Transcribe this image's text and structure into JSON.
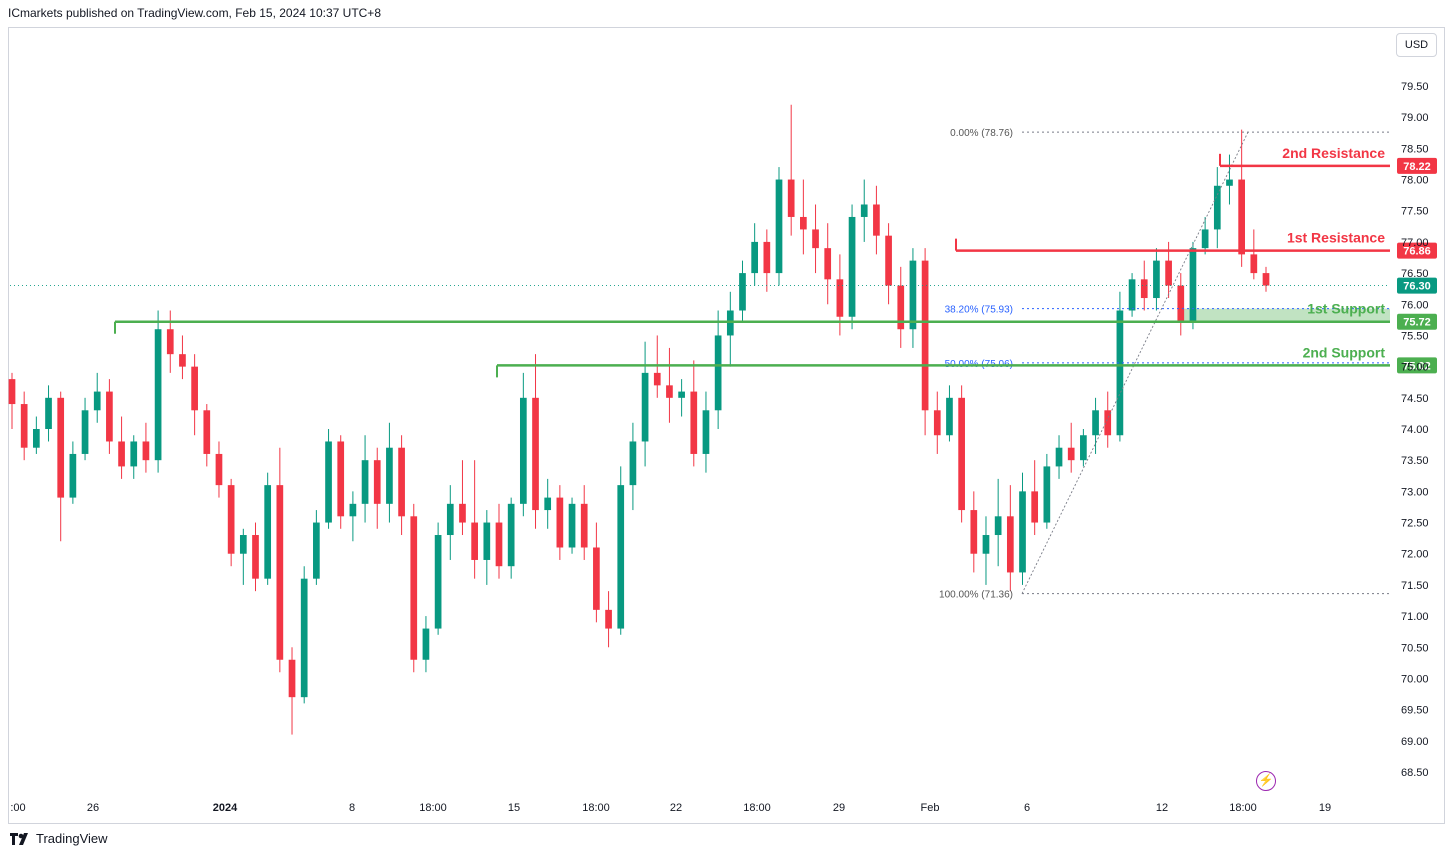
{
  "header": {
    "text": "ICmarkets published on TradingView.com, Feb 15, 2024 10:37 UTC+8"
  },
  "toolbar": {
    "currency": "USD"
  },
  "footer": {
    "brand": "TradingView"
  },
  "colors": {
    "up": "#089981",
    "down": "#f23645",
    "resistance": "#f23645",
    "support": "#4caf50",
    "fib_blue": "#2962ff",
    "grid_text": "#131722",
    "dotted": "#787b86"
  },
  "chart_data": {
    "type": "candlestick",
    "title": "",
    "ylabel": "",
    "ylim": [
      68.2,
      80.2
    ],
    "y_ticks": [
      "68.50",
      "69.00",
      "69.50",
      "70.00",
      "70.50",
      "71.00",
      "71.50",
      "72.00",
      "72.50",
      "73.00",
      "73.50",
      "74.00",
      "74.50",
      "75.00",
      "75.50",
      "76.00",
      "76.50",
      "77.00",
      "77.50",
      "78.00",
      "78.50",
      "79.00",
      "79.50"
    ],
    "x_ticks": [
      ":00",
      "26",
      "2024",
      "8",
      "18:00",
      "15",
      "18:00",
      "22",
      "18:00",
      "29",
      "Feb",
      "6",
      "12",
      "18:00",
      "19"
    ],
    "last_price": "76.30",
    "levels": [
      {
        "label": "2nd Resistance",
        "price": 78.22,
        "value_text": "78.22",
        "kind": "resistance"
      },
      {
        "label": "1st Resistance",
        "price": 76.86,
        "value_text": "76.86",
        "kind": "resistance"
      },
      {
        "label": "1st Support",
        "price": 75.72,
        "value_text": "75.72",
        "kind": "support"
      },
      {
        "label": "2nd Support",
        "price": 75.02,
        "value_text": "75.02",
        "kind": "support"
      }
    ],
    "fib_levels": [
      {
        "label": "0.00% (78.76)",
        "price": 78.76
      },
      {
        "label": "38.20% (75.93)",
        "price": 75.93
      },
      {
        "label": "50.00% (75.06)",
        "price": 75.06
      },
      {
        "label": "100.00% (71.36)",
        "price": 71.36
      }
    ],
    "candles": [
      [
        74.8,
        74.9,
        74.0,
        74.4
      ],
      [
        74.4,
        74.6,
        73.5,
        73.7
      ],
      [
        73.7,
        74.2,
        73.6,
        74.0
      ],
      [
        74.0,
        74.7,
        73.8,
        74.5
      ],
      [
        74.5,
        74.6,
        72.2,
        72.9
      ],
      [
        72.9,
        73.8,
        72.8,
        73.6
      ],
      [
        73.6,
        74.5,
        73.5,
        74.3
      ],
      [
        74.3,
        74.9,
        74.1,
        74.6
      ],
      [
        74.6,
        74.8,
        73.6,
        73.8
      ],
      [
        73.8,
        74.2,
        73.2,
        73.4
      ],
      [
        73.4,
        73.9,
        73.2,
        73.8
      ],
      [
        73.8,
        74.1,
        73.3,
        73.5
      ],
      [
        73.5,
        75.9,
        73.3,
        75.6
      ],
      [
        75.6,
        75.9,
        74.9,
        75.2
      ],
      [
        75.2,
        75.5,
        74.8,
        75.0
      ],
      [
        75.0,
        75.2,
        73.9,
        74.3
      ],
      [
        74.3,
        74.4,
        73.4,
        73.6
      ],
      [
        73.6,
        73.8,
        72.9,
        73.1
      ],
      [
        73.1,
        73.2,
        71.8,
        72.0
      ],
      [
        72.0,
        72.4,
        71.5,
        72.3
      ],
      [
        72.3,
        72.5,
        71.4,
        71.6
      ],
      [
        71.6,
        73.3,
        71.5,
        73.1
      ],
      [
        73.1,
        73.7,
        70.1,
        70.3
      ],
      [
        70.3,
        70.5,
        69.1,
        69.7
      ],
      [
        69.7,
        71.8,
        69.6,
        71.6
      ],
      [
        71.6,
        72.7,
        71.5,
        72.5
      ],
      [
        72.5,
        74.0,
        72.4,
        73.8
      ],
      [
        73.8,
        73.9,
        72.4,
        72.6
      ],
      [
        72.6,
        73.0,
        72.2,
        72.8
      ],
      [
        72.8,
        73.9,
        72.5,
        73.5
      ],
      [
        73.5,
        73.7,
        72.4,
        72.8
      ],
      [
        72.8,
        74.1,
        72.5,
        73.7
      ],
      [
        73.7,
        73.9,
        72.3,
        72.6
      ],
      [
        72.6,
        72.8,
        70.1,
        70.3
      ],
      [
        70.3,
        71.0,
        70.1,
        70.8
      ],
      [
        70.8,
        72.5,
        70.7,
        72.3
      ],
      [
        72.3,
        73.1,
        71.9,
        72.8
      ],
      [
        72.8,
        73.5,
        72.3,
        72.5
      ],
      [
        72.5,
        73.5,
        71.6,
        71.9
      ],
      [
        71.9,
        72.7,
        71.5,
        72.5
      ],
      [
        72.5,
        72.8,
        71.6,
        71.8
      ],
      [
        71.8,
        72.9,
        71.6,
        72.8
      ],
      [
        72.8,
        74.9,
        72.6,
        74.5
      ],
      [
        74.5,
        75.2,
        72.4,
        72.7
      ],
      [
        72.7,
        73.2,
        72.4,
        72.9
      ],
      [
        72.9,
        73.1,
        71.9,
        72.1
      ],
      [
        72.1,
        72.9,
        72.0,
        72.8
      ],
      [
        72.8,
        73.1,
        71.9,
        72.1
      ],
      [
        72.1,
        72.5,
        70.9,
        71.1
      ],
      [
        71.1,
        71.4,
        70.5,
        70.8
      ],
      [
        70.8,
        73.4,
        70.7,
        73.1
      ],
      [
        73.1,
        74.1,
        72.7,
        73.8
      ],
      [
        73.8,
        75.4,
        73.4,
        74.9
      ],
      [
        74.9,
        75.5,
        74.5,
        74.7
      ],
      [
        74.7,
        75.3,
        74.1,
        74.5
      ],
      [
        74.5,
        74.8,
        74.2,
        74.6
      ],
      [
        74.6,
        75.1,
        73.4,
        73.6
      ],
      [
        73.6,
        74.6,
        73.3,
        74.3
      ],
      [
        74.3,
        75.9,
        74.0,
        75.5
      ],
      [
        75.5,
        76.2,
        75.0,
        75.9
      ],
      [
        75.9,
        76.7,
        75.7,
        76.5
      ],
      [
        76.5,
        77.3,
        76.3,
        77.0
      ],
      [
        77.0,
        77.2,
        76.2,
        76.5
      ],
      [
        76.5,
        78.2,
        76.3,
        78.0
      ],
      [
        78.0,
        79.2,
        77.1,
        77.4
      ],
      [
        77.4,
        78.0,
        76.8,
        77.2
      ],
      [
        77.2,
        77.6,
        76.5,
        76.9
      ],
      [
        76.9,
        77.3,
        76.0,
        76.4
      ],
      [
        76.4,
        76.8,
        75.5,
        75.8
      ],
      [
        75.8,
        77.6,
        75.6,
        77.4
      ],
      [
        77.4,
        78.0,
        77.0,
        77.6
      ],
      [
        77.6,
        77.9,
        76.8,
        77.1
      ],
      [
        77.1,
        77.3,
        76.0,
        76.3
      ],
      [
        76.3,
        76.6,
        75.3,
        75.6
      ],
      [
        75.6,
        76.9,
        75.3,
        76.7
      ],
      [
        76.7,
        76.9,
        73.9,
        74.3
      ],
      [
        74.3,
        74.6,
        73.6,
        73.9
      ],
      [
        73.9,
        74.7,
        73.8,
        74.5
      ],
      [
        74.5,
        74.7,
        72.5,
        72.7
      ],
      [
        72.7,
        73.0,
        71.7,
        72.0
      ],
      [
        72.0,
        72.6,
        71.5,
        72.3
      ],
      [
        72.3,
        73.2,
        71.8,
        72.6
      ],
      [
        72.6,
        73.1,
        71.4,
        71.7
      ],
      [
        71.7,
        73.3,
        71.5,
        73.0
      ],
      [
        73.0,
        73.5,
        72.3,
        72.5
      ],
      [
        72.5,
        73.6,
        72.4,
        73.4
      ],
      [
        73.4,
        73.9,
        73.2,
        73.7
      ],
      [
        73.7,
        74.1,
        73.3,
        73.5
      ],
      [
        73.5,
        74.0,
        73.4,
        73.9
      ],
      [
        73.9,
        74.5,
        73.6,
        74.3
      ],
      [
        74.3,
        74.6,
        73.7,
        73.9
      ],
      [
        73.9,
        76.2,
        73.8,
        75.9
      ],
      [
        75.9,
        76.5,
        75.8,
        76.4
      ],
      [
        76.4,
        76.7,
        75.9,
        76.1
      ],
      [
        76.1,
        76.9,
        75.9,
        76.7
      ],
      [
        76.7,
        77.0,
        76.1,
        76.3
      ],
      [
        76.3,
        76.5,
        75.5,
        75.7
      ],
      [
        75.7,
        77.0,
        75.6,
        76.9
      ],
      [
        76.9,
        77.4,
        76.8,
        77.2
      ],
      [
        77.2,
        78.2,
        76.9,
        77.9
      ],
      [
        77.9,
        78.4,
        77.6,
        78.0
      ],
      [
        78.0,
        78.8,
        76.6,
        76.8
      ],
      [
        76.8,
        77.2,
        76.4,
        76.5
      ],
      [
        76.5,
        76.6,
        76.2,
        76.3
      ]
    ]
  }
}
